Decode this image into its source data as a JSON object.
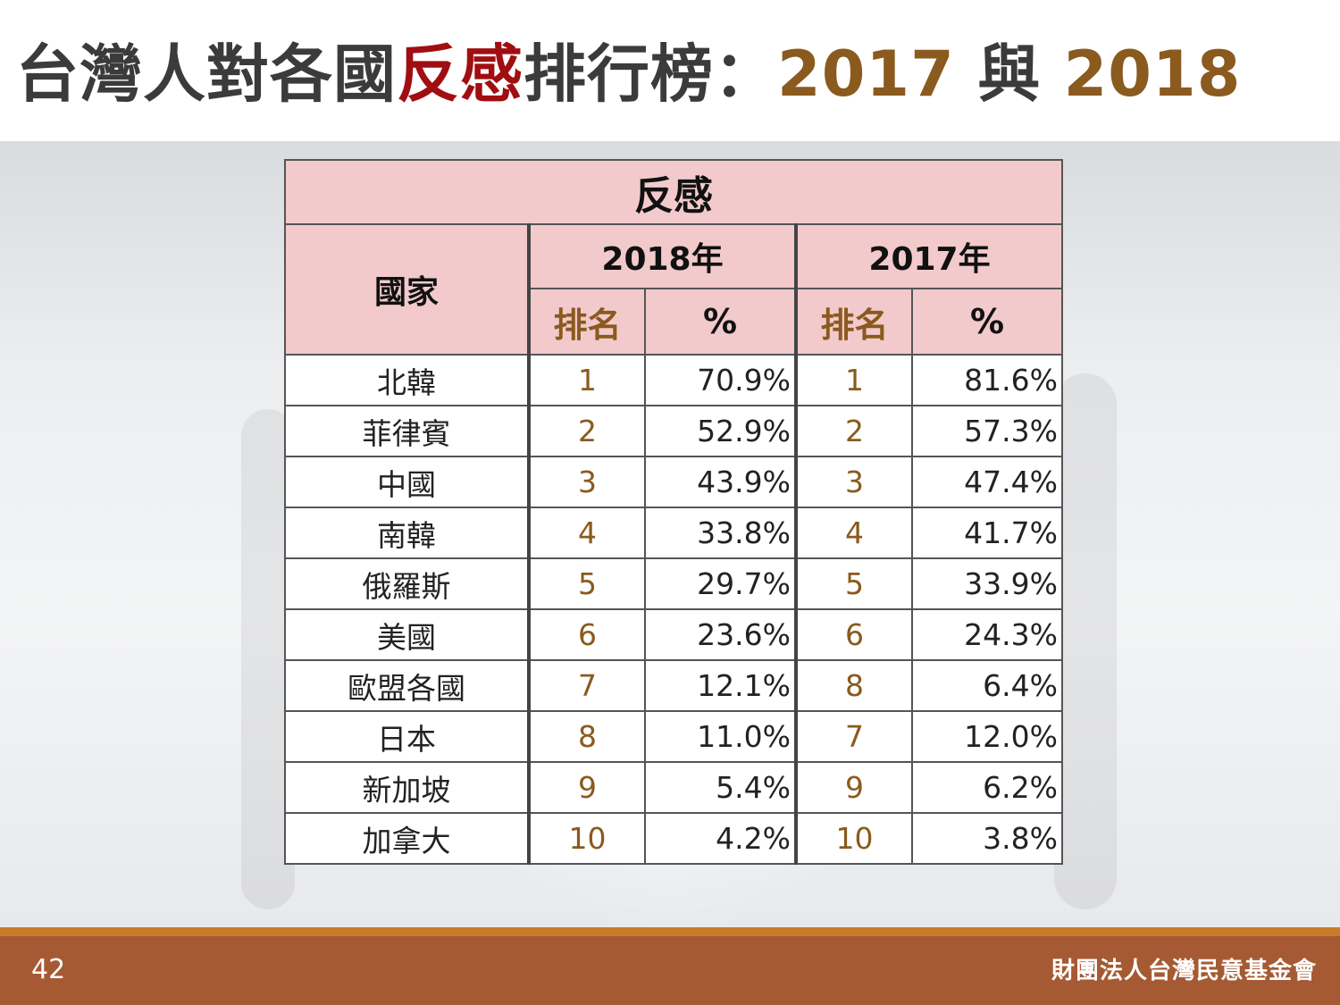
{
  "title": {
    "part1": "台灣人對各國",
    "part2": "反感",
    "part3": "排行榜：",
    "year_a": "2017",
    "joiner": " 與 ",
    "year_b": "2018"
  },
  "table": {
    "main_header": "反感",
    "country_header": "國家",
    "year_2018": "2018年",
    "year_2017": "2017年",
    "rank_label": "排名",
    "pct_label": "%",
    "rows": [
      {
        "country": "北韓",
        "rank_2018": "1",
        "pct_2018": "70.9%",
        "rank_2017": "1",
        "pct_2017": "81.6%"
      },
      {
        "country": "菲律賓",
        "rank_2018": "2",
        "pct_2018": "52.9%",
        "rank_2017": "2",
        "pct_2017": "57.3%"
      },
      {
        "country": "中國",
        "rank_2018": "3",
        "pct_2018": "43.9%",
        "rank_2017": "3",
        "pct_2017": "47.4%"
      },
      {
        "country": "南韓",
        "rank_2018": "4",
        "pct_2018": "33.8%",
        "rank_2017": "4",
        "pct_2017": "41.7%"
      },
      {
        "country": "俄羅斯",
        "rank_2018": "5",
        "pct_2018": "29.7%",
        "rank_2017": "5",
        "pct_2017": "33.9%"
      },
      {
        "country": "美國",
        "rank_2018": "6",
        "pct_2018": "23.6%",
        "rank_2017": "6",
        "pct_2017": "24.3%"
      },
      {
        "country": "歐盟各國",
        "rank_2018": "7",
        "pct_2018": "12.1%",
        "rank_2017": "8",
        "pct_2017": "6.4%"
      },
      {
        "country": "日本",
        "rank_2018": "8",
        "pct_2018": "11.0%",
        "rank_2017": "7",
        "pct_2017": "12.0%"
      },
      {
        "country": "新加坡",
        "rank_2018": "9",
        "pct_2018": "5.4%",
        "rank_2017": "9",
        "pct_2017": "6.2%"
      },
      {
        "country": "加拿大",
        "rank_2018": "10",
        "pct_2018": "4.2%",
        "rank_2017": "10",
        "pct_2017": "3.8%"
      }
    ]
  },
  "footer": {
    "page_number": "42",
    "organization": "財團法人台灣民意基金會"
  },
  "colors": {
    "title_highlight_red": "#a00e12",
    "title_year_gold": "#8a5a1e",
    "header_pink": "#f2cacc",
    "footer_brown": "#a55a33",
    "footer_line_orange": "#c97a2a"
  }
}
